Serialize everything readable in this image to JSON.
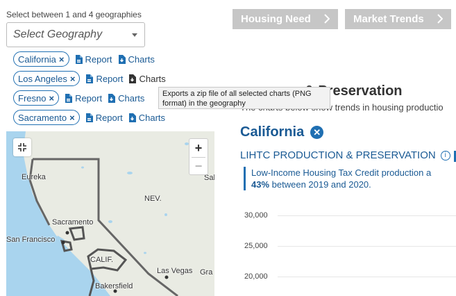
{
  "selector": {
    "hint": "Select between 1 and 4 geographies",
    "placeholder": "Select Geography"
  },
  "geographies": [
    {
      "name": "California",
      "report_label": "Report",
      "charts_label": "Charts"
    },
    {
      "name": "Los Angeles",
      "report_label": "Report",
      "charts_label": "Charts"
    },
    {
      "name": "Fresno",
      "report_label": "Report",
      "charts_label": "Charts"
    },
    {
      "name": "Sacramento",
      "report_label": "Report",
      "charts_label": "Charts"
    }
  ],
  "tooltip": {
    "line1": "Exports a zip file of all selected charts (PNG",
    "line2": "format) in the geography"
  },
  "tabs": [
    {
      "label": "Housing Need"
    },
    {
      "label": "Market Trends"
    }
  ],
  "section": {
    "title_visible": "& Preservation",
    "subtitle_visible": "The charts below show trends in housing productio"
  },
  "geo_heading": {
    "name": "California",
    "clear_glyph": "✕"
  },
  "chart_header": {
    "label": "LIHTC PRODUCTION & PRESERVATION",
    "info_glyph": "i"
  },
  "callout": {
    "line1": "Low-Income Housing Tax Credit production a",
    "pct": "43%",
    "line2_rest": " between 2019 and 2020."
  },
  "chart_data": {
    "type": "bar",
    "y_ticks": [
      "30,000",
      "25,000",
      "20,000"
    ]
  },
  "map": {
    "zoom_in": "+",
    "zoom_out": "−",
    "labels": {
      "eureka": "Eureka",
      "nev": "NEV.",
      "sacramento": "Sacramento",
      "san_francisco": "San Francisco",
      "calif": "CALIF.",
      "las_vegas": "Las Vegas",
      "gra": "Gra",
      "sal": "Sal",
      "bakersfield": "Bakersfield"
    }
  },
  "colors": {
    "accent": "#1f6fb2",
    "tab_bg": "#c6c6c6",
    "water": "#a9d4ee",
    "land": "#e9ebe3"
  }
}
